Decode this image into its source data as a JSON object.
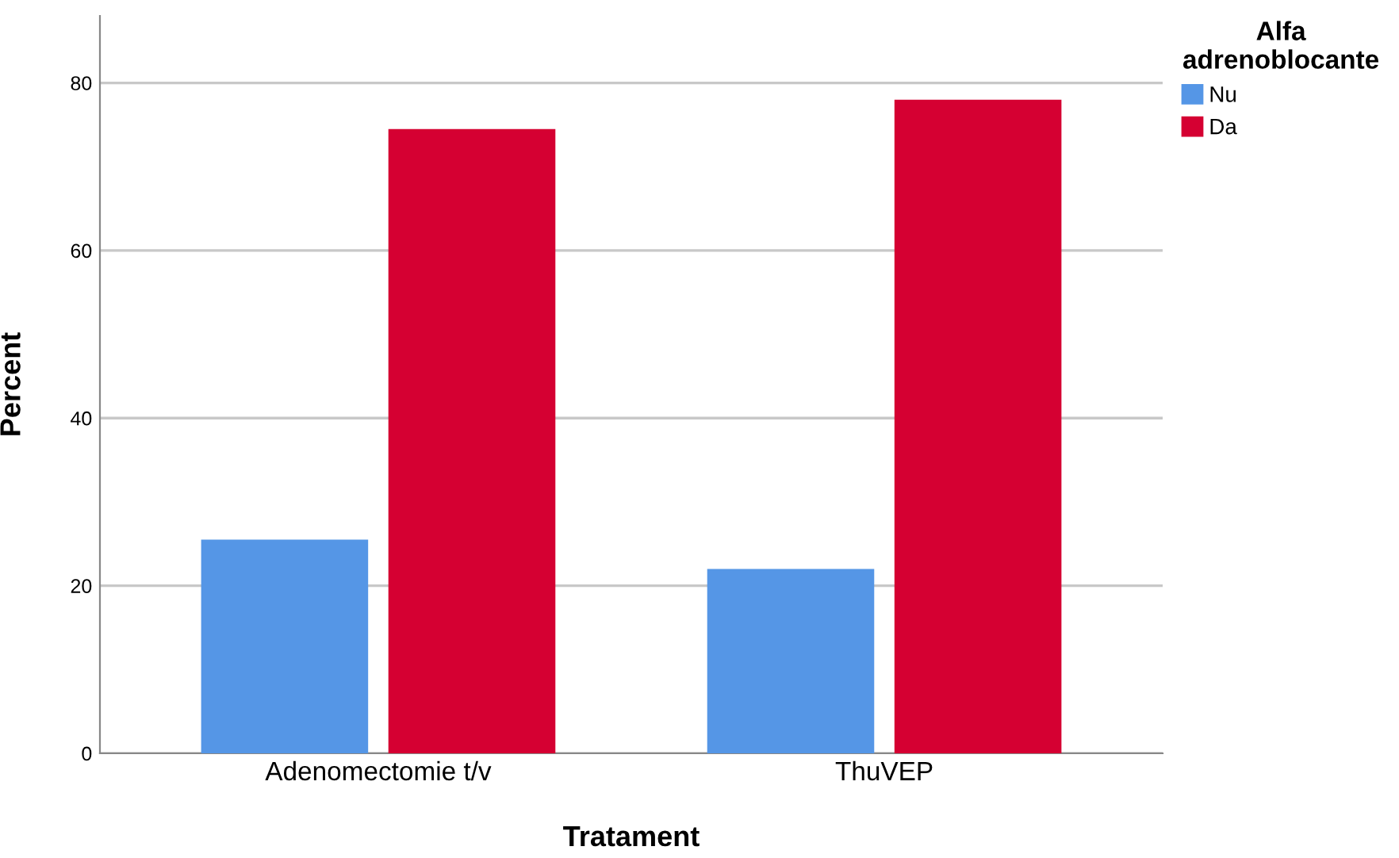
{
  "chart_data": {
    "type": "bar",
    "xlabel": "Tratament",
    "ylabel": "Percent",
    "legend_title": "Alfa\nadrenoblocante",
    "categories": [
      "Adenomectomie t/v",
      "ThuVEP"
    ],
    "series": [
      {
        "name": "Nu",
        "color": "#5596e6",
        "values": [
          25.5,
          22
        ]
      },
      {
        "name": "Da",
        "color": "#d50032",
        "values": [
          74.5,
          78
        ]
      }
    ],
    "ylim": [
      0,
      88
    ],
    "yticks": [
      0,
      20,
      40,
      60,
      80
    ],
    "grid": "y",
    "legend": "top right"
  }
}
